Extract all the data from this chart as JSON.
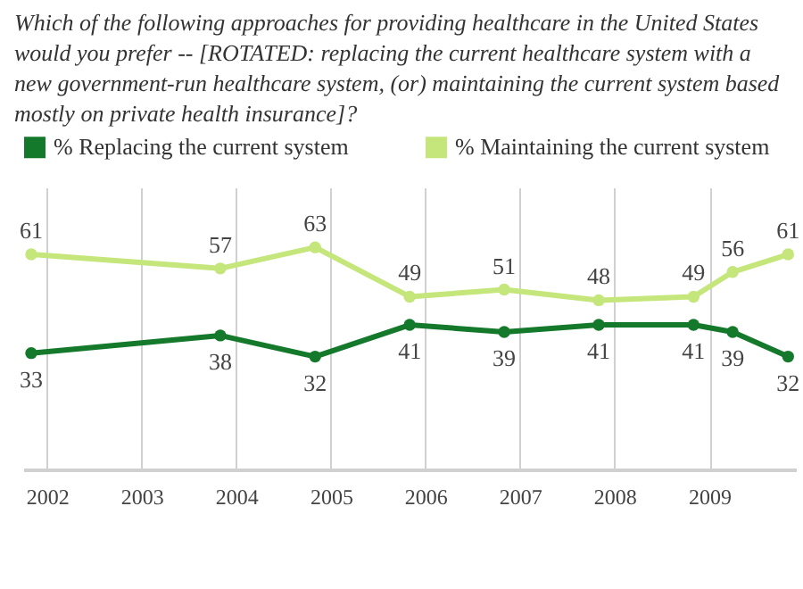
{
  "chart_data": {
    "type": "line",
    "title": "Which of the following approaches for providing healthcare in the United States would you prefer -- [ROTATED: replacing the current healthcare system with a new government-run healthcare system, (or) maintaining the current system based mostly on private health insurance]?",
    "x": [
      "2001-11",
      "2003-11",
      "2004-11",
      "2005-11",
      "2006-11",
      "2007-11",
      "2008-11",
      "2009-04",
      "2009-11"
    ],
    "series": [
      {
        "name": "% Replacing the current system",
        "color": "#15792c",
        "values": [
          33,
          38,
          32,
          41,
          39,
          41,
          41,
          39,
          32
        ]
      },
      {
        "name": "% Maintaining the current system",
        "color": "#c4e67a",
        "values": [
          61,
          57,
          63,
          49,
          51,
          48,
          49,
          56,
          61
        ]
      }
    ],
    "xlim": [
      "2001-10",
      "2009-12"
    ],
    "xticks": [
      {
        "value": "2002",
        "label": "2002"
      },
      {
        "value": "2003",
        "label": "2003"
      },
      {
        "value": "2004",
        "label": "2004"
      },
      {
        "value": "2005",
        "label": "2005"
      },
      {
        "value": "2006",
        "label": "2006"
      },
      {
        "value": "2007",
        "label": "2007"
      },
      {
        "value": "2008",
        "label": "2008"
      },
      {
        "value": "2009",
        "label": "2009"
      }
    ],
    "ylim": [
      0,
      80
    ],
    "tick_labels": "x",
    "grid": "x",
    "legend": "top",
    "marker": "circle",
    "line_style": "solid",
    "data_labels": true
  }
}
